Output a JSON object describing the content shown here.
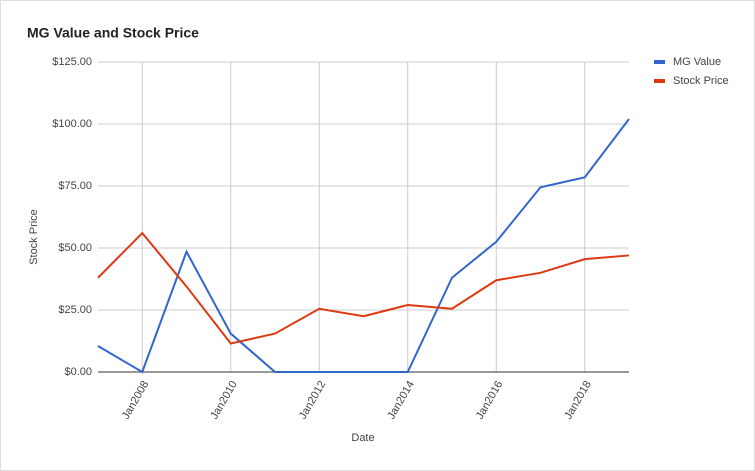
{
  "chart_data": {
    "type": "line",
    "title": "MG Value and Stock Price",
    "x_label": "Date",
    "y_label": "Stock Price",
    "categories": [
      null,
      "Jan2008",
      null,
      "Jan2010",
      null,
      "Jan2012",
      null,
      "Jan2014",
      null,
      "Jan2016",
      null,
      "Jan2018",
      null
    ],
    "series": [
      {
        "name": "MG Value",
        "color": "#3366cc",
        "values": [
          10.5,
          0,
          48.5,
          15.5,
          0,
          0,
          0,
          0,
          38,
          52.5,
          74.5,
          78.5,
          102
        ]
      },
      {
        "name": "Stock Price",
        "color": "#dc3912",
        "values": [
          38,
          56,
          34.5,
          11.5,
          15.5,
          25.5,
          22.5,
          27,
          25.5,
          37,
          40,
          45.5,
          47
        ]
      }
    ],
    "ylim": [
      0,
      125
    ],
    "yticks": [
      {
        "value": 0,
        "label": "$0.00"
      },
      {
        "value": 25,
        "label": "$25.00"
      },
      {
        "value": 50,
        "label": "$50.00"
      },
      {
        "value": 75,
        "label": "$75.00"
      },
      {
        "value": 100,
        "label": "$100.00"
      },
      {
        "value": 125,
        "label": "$125.00"
      }
    ],
    "grid": true,
    "legend": "right"
  }
}
